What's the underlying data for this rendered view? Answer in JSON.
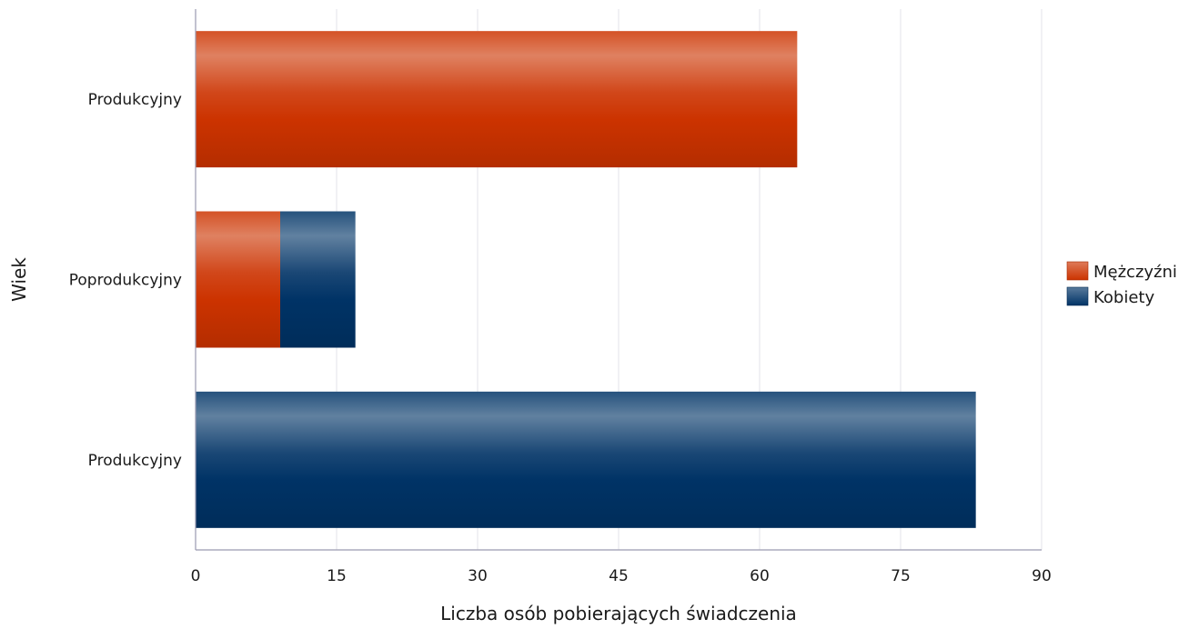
{
  "chart_data": {
    "type": "bar",
    "orientation": "horizontal",
    "stacked": true,
    "categories": [
      "Produkcyjny",
      "Poprodukcyjny",
      "Produkcyjny"
    ],
    "series": [
      {
        "name": "Mężczyźni",
        "color": "#cc3300",
        "values": [
          64,
          9,
          0
        ]
      },
      {
        "name": "Kobiety",
        "color": "#003366",
        "values": [
          0,
          8,
          83
        ]
      }
    ],
    "xlabel": "Liczba osób pobierających świadczenia",
    "ylabel": "Wiek",
    "xlim": [
      0,
      90
    ],
    "xticks": [
      0,
      15,
      30,
      45,
      60,
      75,
      90
    ],
    "grid": true,
    "legend_position": "right"
  }
}
